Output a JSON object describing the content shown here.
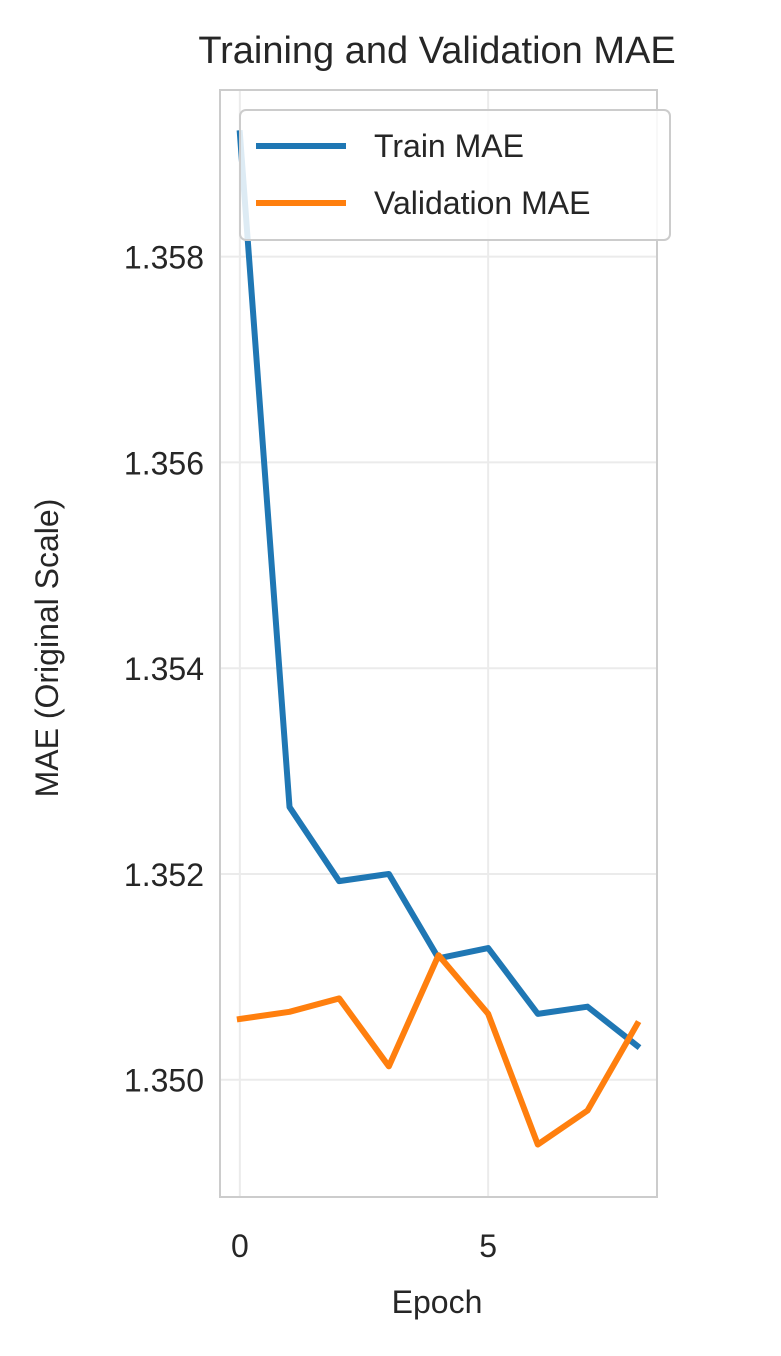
{
  "chart_data": {
    "type": "line",
    "title": "Training and Validation MAE",
    "xlabel": "Epoch",
    "ylabel": "MAE (Original Scale)",
    "x": [
      0,
      1,
      2,
      3,
      4,
      5,
      6,
      7,
      8
    ],
    "xlim": [
      -0.4,
      8.4
    ],
    "ylim": [
      1.34886,
      1.35962
    ],
    "xticks": [
      0,
      5
    ],
    "xtick_labels": [
      "0",
      "5"
    ],
    "yticks": [
      1.35,
      1.352,
      1.354,
      1.356,
      1.358
    ],
    "ytick_labels": [
      "1.350",
      "1.352",
      "1.354",
      "1.356",
      "1.358"
    ],
    "grid": true,
    "legend_position": "upper right",
    "series": [
      {
        "name": "Train MAE",
        "color": "#1f77b4",
        "values": [
          1.3592,
          1.35265,
          1.35193,
          1.352,
          1.35118,
          1.35128,
          1.35064,
          1.35071,
          1.35033
        ]
      },
      {
        "name": "Validation MAE",
        "color": "#ff7f0e",
        "values": [
          1.35059,
          1.35066,
          1.35079,
          1.35013,
          1.35121,
          1.35064,
          1.34937,
          1.3497,
          1.35054
        ]
      }
    ]
  }
}
